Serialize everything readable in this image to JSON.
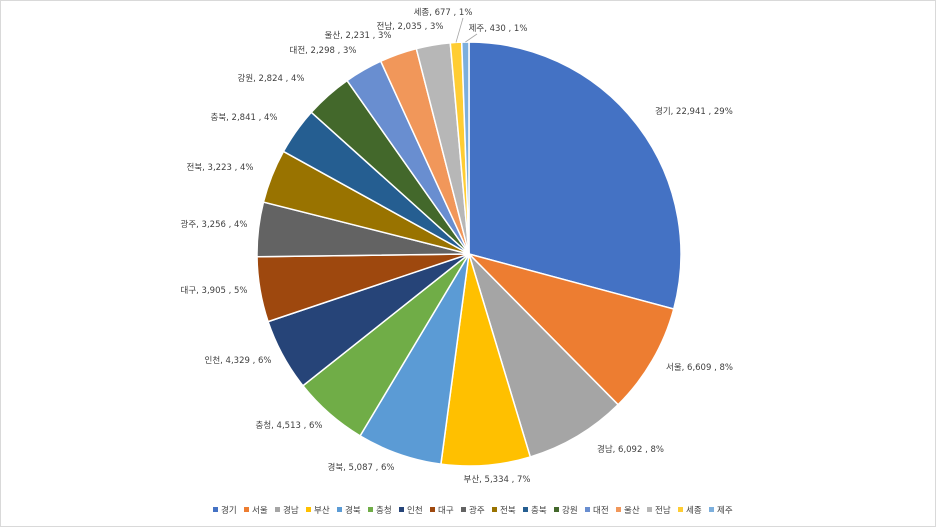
{
  "chart_data": {
    "type": "pie",
    "title": "",
    "legend": "bottom",
    "categories": [
      "경기",
      "서울",
      "경남",
      "부산",
      "경북",
      "충청",
      "인천",
      "대구",
      "광주",
      "전북",
      "충북",
      "강원",
      "대전",
      "울산",
      "전남",
      "세종",
      "제주"
    ],
    "values": [
      22941,
      6609,
      6092,
      5334,
      5087,
      4513,
      4329,
      3905,
      3256,
      3223,
      2841,
      2824,
      2298,
      2231,
      2035,
      677,
      430
    ],
    "data_labels": [
      "경기, 22,941 , 29%",
      "서울, 6,609 , 8%",
      "경남, 6,092 , 8%",
      "부산, 5,334 , 7%",
      "경북, 5,087 , 6%",
      "충청, 4,513 , 6%",
      "인천, 4,329 , 6%",
      "대구, 3,905 , 5%",
      "광주, 3,256 , 4%",
      "전북, 3,223 , 4%",
      "충북, 2,841 , 4%",
      "강원, 2,824 , 4%",
      "대전, 2,298 , 3%",
      "울산, 2,231 , 3%",
      "전남, 2,035 , 3%",
      "세종, 677 , 1%",
      "제주, 430 , 1%"
    ],
    "colors": [
      "#4472C4",
      "#ED7D31",
      "#A5A5A5",
      "#FFC000",
      "#5B9BD5",
      "#70AD47",
      "#264478",
      "#9E480E",
      "#636363",
      "#997300",
      "#255E91",
      "#43682B",
      "#698ED0",
      "#F1975A",
      "#B7B7B7",
      "#FFCD33",
      "#7CAFDD"
    ]
  }
}
